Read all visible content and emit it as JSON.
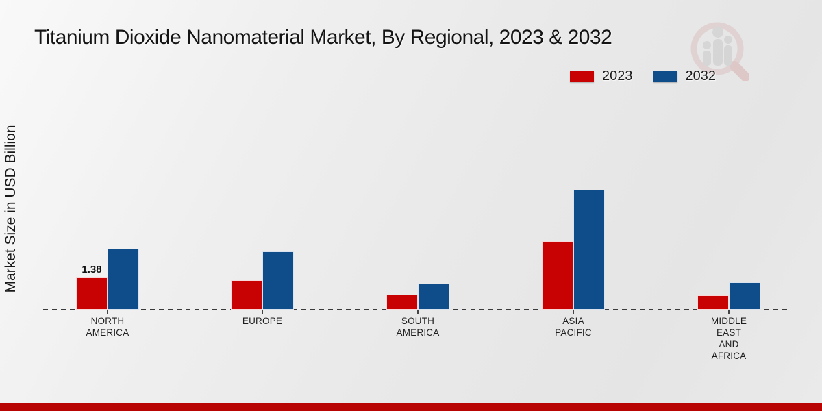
{
  "page": {
    "title": "Titanium Dioxide Nanomaterial Market, By Regional, 2023 & 2032",
    "ylabel": "Market Size in USD Billion",
    "footer_color": "#b90404",
    "watermark_icon": "magnifier-bar-chart-logo"
  },
  "legend": {
    "position": "top-right",
    "items": [
      {
        "label": "2023",
        "color": "#c80202"
      },
      {
        "label": "2032",
        "color": "#0f4d8a"
      }
    ]
  },
  "chart_data": {
    "type": "bar",
    "title": "Titanium Dioxide Nanomaterial Market, By Regional, 2023 & 2032",
    "xlabel": "",
    "ylabel": "Market Size in USD Billion",
    "unit": "USD Billion",
    "grid": false,
    "baseline_style": "dashed",
    "categories": [
      "NORTH AMERICA",
      "EUROPE",
      "SOUTH AMERICA",
      "ASIA PACIFIC",
      "MIDDLE EAST AND AFRICA"
    ],
    "category_lines": [
      [
        "NORTH",
        "AMERICA"
      ],
      [
        "EUROPE"
      ],
      [
        "SOUTH",
        "AMERICA"
      ],
      [
        "ASIA",
        "PACIFIC"
      ],
      [
        "MIDDLE",
        "EAST",
        "AND",
        "AFRICA"
      ]
    ],
    "series": [
      {
        "name": "2023",
        "color": "#c80202",
        "values": [
          1.38,
          1.26,
          0.64,
          2.95,
          0.62
        ]
      },
      {
        "name": "2032",
        "color": "#0f4d8a",
        "values": [
          2.61,
          2.5,
          1.12,
          5.14,
          1.18
        ]
      }
    ],
    "value_labels": [
      {
        "series": "2023",
        "category": "NORTH AMERICA",
        "text": "1.38"
      }
    ],
    "ylim": [
      0,
      6
    ]
  }
}
